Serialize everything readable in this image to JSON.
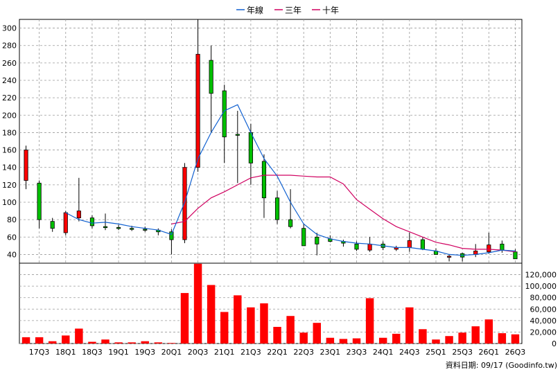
{
  "chart_data": [
    {
      "type": "candlestick",
      "legend": [
        "年線",
        "三年",
        "十年"
      ],
      "legend_placement": "top-center",
      "grid": true,
      "ylim": [
        30,
        310
      ],
      "y_ticks": [
        40,
        60,
        80,
        100,
        120,
        140,
        160,
        180,
        200,
        220,
        240,
        260,
        280,
        300
      ],
      "x_tick_labels": [
        "17Q3",
        "18Q1",
        "18Q3",
        "19Q1",
        "19Q3",
        "20Q1",
        "20Q3",
        "21Q1",
        "21Q3",
        "22Q1",
        "22Q3",
        "23Q1",
        "23Q3",
        "24Q1",
        "24Q3",
        "25Q1",
        "25Q3",
        "26Q1",
        "26Q3"
      ],
      "colors": {
        "up": "#ff0000",
        "down": "#00c000",
        "line_1y": "#1060d0",
        "line_3y": "#d00060"
      },
      "ohlc": [
        [
          125,
          165,
          115,
          160
        ],
        [
          122,
          125,
          70,
          80
        ],
        [
          78,
          82,
          66,
          70
        ],
        [
          65,
          90,
          62,
          88
        ],
        [
          82,
          128,
          78,
          90
        ],
        [
          82,
          85,
          70,
          73
        ],
        [
          72,
          87,
          68,
          71
        ],
        [
          71,
          74,
          68,
          70
        ],
        [
          70,
          73,
          67,
          69
        ],
        [
          69,
          72,
          66,
          68
        ],
        [
          68,
          70,
          62,
          66
        ],
        [
          66,
          69,
          40,
          57
        ],
        [
          57,
          145,
          53,
          140
        ],
        [
          140,
          310,
          135,
          270
        ],
        [
          263,
          280,
          180,
          225
        ],
        [
          228,
          235,
          145,
          175
        ],
        [
          178,
          205,
          122,
          177
        ],
        [
          180,
          190,
          120,
          145
        ],
        [
          147,
          155,
          82,
          105
        ],
        [
          105,
          113,
          75,
          80
        ],
        [
          80,
          115,
          70,
          72
        ],
        [
          70,
          75,
          50,
          50
        ],
        [
          60,
          65,
          39,
          52
        ],
        [
          58,
          62,
          54,
          55
        ],
        [
          55,
          57,
          49,
          53
        ],
        [
          52,
          55,
          44,
          46
        ],
        [
          45,
          60,
          43,
          52
        ],
        [
          52,
          55,
          45,
          48
        ],
        [
          46,
          50,
          44,
          48
        ],
        [
          48,
          65,
          43,
          56
        ],
        [
          57,
          60,
          45,
          46
        ],
        [
          44,
          47,
          40,
          40
        ],
        [
          37,
          40,
          32,
          38
        ],
        [
          41,
          42,
          32,
          37
        ],
        [
          40,
          52,
          37,
          44
        ],
        [
          43,
          65,
          41,
          51
        ],
        [
          52,
          56,
          42,
          45
        ],
        [
          43,
          46,
          37,
          35
        ]
      ],
      "series_1y": [
        [
          3,
          88
        ],
        [
          4,
          80
        ],
        [
          5,
          76
        ],
        [
          6,
          77
        ],
        [
          7,
          75
        ],
        [
          8,
          72
        ],
        [
          9,
          70
        ],
        [
          10,
          68
        ],
        [
          11,
          63
        ],
        [
          12,
          100
        ],
        [
          13,
          150
        ],
        [
          14,
          180
        ],
        [
          15,
          205
        ],
        [
          16,
          212
        ],
        [
          17,
          180
        ],
        [
          18,
          150
        ],
        [
          19,
          130
        ],
        [
          20,
          100
        ],
        [
          21,
          75
        ],
        [
          22,
          63
        ],
        [
          23,
          58
        ],
        [
          24,
          55
        ],
        [
          25,
          53
        ],
        [
          26,
          52
        ],
        [
          27,
          50
        ],
        [
          28,
          48
        ],
        [
          29,
          48
        ],
        [
          30,
          46
        ],
        [
          31,
          44
        ],
        [
          32,
          40
        ],
        [
          33,
          39
        ],
        [
          34,
          40
        ],
        [
          35,
          42
        ],
        [
          36,
          45
        ],
        [
          37,
          44
        ]
      ],
      "series_3y": [
        [
          11,
          75
        ],
        [
          12,
          78
        ],
        [
          13,
          93
        ],
        [
          14,
          105
        ],
        [
          15,
          112
        ],
        [
          16,
          120
        ],
        [
          17,
          128
        ],
        [
          18,
          131
        ],
        [
          19,
          131
        ],
        [
          20,
          131
        ],
        [
          21,
          130
        ],
        [
          22,
          129
        ],
        [
          23,
          129
        ],
        [
          24,
          121
        ],
        [
          25,
          103
        ],
        [
          26,
          92
        ],
        [
          27,
          81
        ],
        [
          28,
          72
        ],
        [
          29,
          66
        ],
        [
          30,
          60
        ],
        [
          31,
          54
        ],
        [
          32,
          51
        ],
        [
          33,
          47
        ],
        [
          34,
          46
        ],
        [
          35,
          46
        ],
        [
          36,
          45
        ],
        [
          37,
          43
        ]
      ]
    },
    {
      "type": "bar",
      "ylim": [
        0,
        140000
      ],
      "y_ticks": [
        "0",
        "20,000",
        "40,000",
        "60,000",
        "80,000",
        "100,000",
        "120,000"
      ],
      "values": [
        11000,
        11000,
        4000,
        14000,
        26000,
        3000,
        7000,
        2000,
        2000,
        4000,
        2000,
        1000,
        88000,
        139000,
        102000,
        55000,
        84000,
        63000,
        70000,
        29000,
        48000,
        19000,
        36000,
        10000,
        8000,
        9000,
        79000,
        10000,
        17000,
        63000,
        25000,
        7000,
        13000,
        19000,
        30000,
        42000,
        18000,
        16000
      ],
      "bar_color": "#ff0000"
    }
  ],
  "footer": "資料日期: 09/17 (Goodinfo.tw)"
}
